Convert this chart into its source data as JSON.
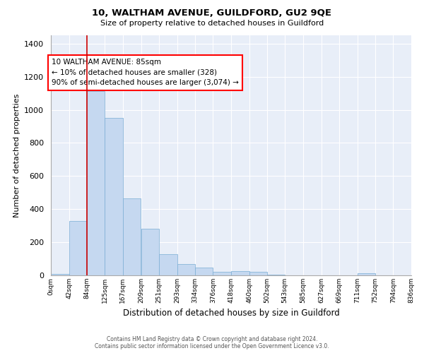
{
  "title_line1": "10, WALTHAM AVENUE, GUILDFORD, GU2 9QE",
  "title_line2": "Size of property relative to detached houses in Guildford",
  "xlabel": "Distribution of detached houses by size in Guildford",
  "ylabel": "Number of detached properties",
  "bar_color": "#c5d8f0",
  "bar_edge_color": "#7aadd4",
  "bg_color": "#e8eef8",
  "annotation_text": "10 WALTHAM AVENUE: 85sqm\n← 10% of detached houses are smaller (328)\n90% of semi-detached houses are larger (3,074) →",
  "vline_x_index": 2,
  "vline_color": "#cc0000",
  "footer_line1": "Contains HM Land Registry data © Crown copyright and database right 2024.",
  "footer_line2": "Contains public sector information licensed under the Open Government Licence v3.0.",
  "bin_edges": [
    0,
    42,
    84,
    125,
    167,
    209,
    251,
    293,
    334,
    376,
    418,
    460,
    502,
    543,
    585,
    627,
    669,
    711,
    752,
    794,
    836
  ],
  "bin_labels": [
    "0sqm",
    "42sqm",
    "84sqm",
    "125sqm",
    "167sqm",
    "209sqm",
    "251sqm",
    "293sqm",
    "334sqm",
    "376sqm",
    "418sqm",
    "460sqm",
    "502sqm",
    "543sqm",
    "585sqm",
    "627sqm",
    "669sqm",
    "711sqm",
    "752sqm",
    "794sqm",
    "836sqm"
  ],
  "counts": [
    10,
    328,
    1115,
    950,
    465,
    280,
    130,
    70,
    45,
    22,
    25,
    20,
    5,
    0,
    0,
    0,
    0,
    12,
    0,
    0
  ],
  "ylim": [
    0,
    1450
  ],
  "yticks": [
    0,
    200,
    400,
    600,
    800,
    1000,
    1200,
    1400
  ]
}
